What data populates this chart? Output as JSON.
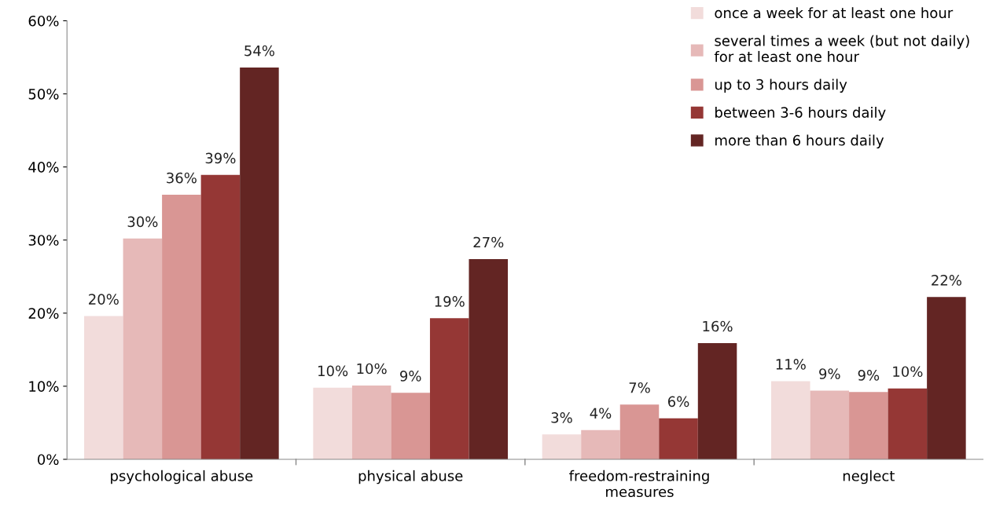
{
  "chart_data": {
    "type": "bar",
    "categories": [
      "psychological abuse",
      "physical abuse",
      "freedom-restraining\nmeasures",
      "neglect"
    ],
    "series": [
      {
        "name": "once a week for at least one hour",
        "color": "#f2dcdb",
        "values": [
          19.6,
          9.8,
          3.4,
          10.7
        ],
        "value_labels": [
          "20%",
          "10%",
          "3%",
          "11%"
        ]
      },
      {
        "name": "several times a week (but not daily)\nfor at least one hour",
        "color": "#e6b9b8",
        "values": [
          30.2,
          10.1,
          4.0,
          9.4
        ],
        "value_labels": [
          "30%",
          "10%",
          "4%",
          "9%"
        ]
      },
      {
        "name": "up to 3 hours daily",
        "color": "#d99694",
        "values": [
          36.2,
          9.1,
          7.5,
          9.2
        ],
        "value_labels": [
          "36%",
          "9%",
          "7%",
          "9%"
        ]
      },
      {
        "name": "between 3-6 hours daily",
        "color": "#953735",
        "values": [
          38.9,
          19.3,
          5.6,
          9.7
        ],
        "value_labels": [
          "39%",
          "19%",
          "6%",
          "10%"
        ]
      },
      {
        "name": "more than 6 hours daily",
        "color": "#632523",
        "values": [
          53.6,
          27.4,
          15.9,
          22.2
        ],
        "value_labels": [
          "54%",
          "27%",
          "16%",
          "22%"
        ]
      }
    ],
    "ylim": [
      0,
      60
    ],
    "yticks": [
      {
        "value": 0,
        "label": "0%"
      },
      {
        "value": 10,
        "label": "10%"
      },
      {
        "value": 20,
        "label": "20%"
      },
      {
        "value": 30,
        "label": "30%"
      },
      {
        "value": 40,
        "label": "40%"
      },
      {
        "value": 50,
        "label": "50%"
      },
      {
        "value": 60,
        "label": "60%"
      }
    ],
    "grid": false,
    "legend": "top right"
  }
}
